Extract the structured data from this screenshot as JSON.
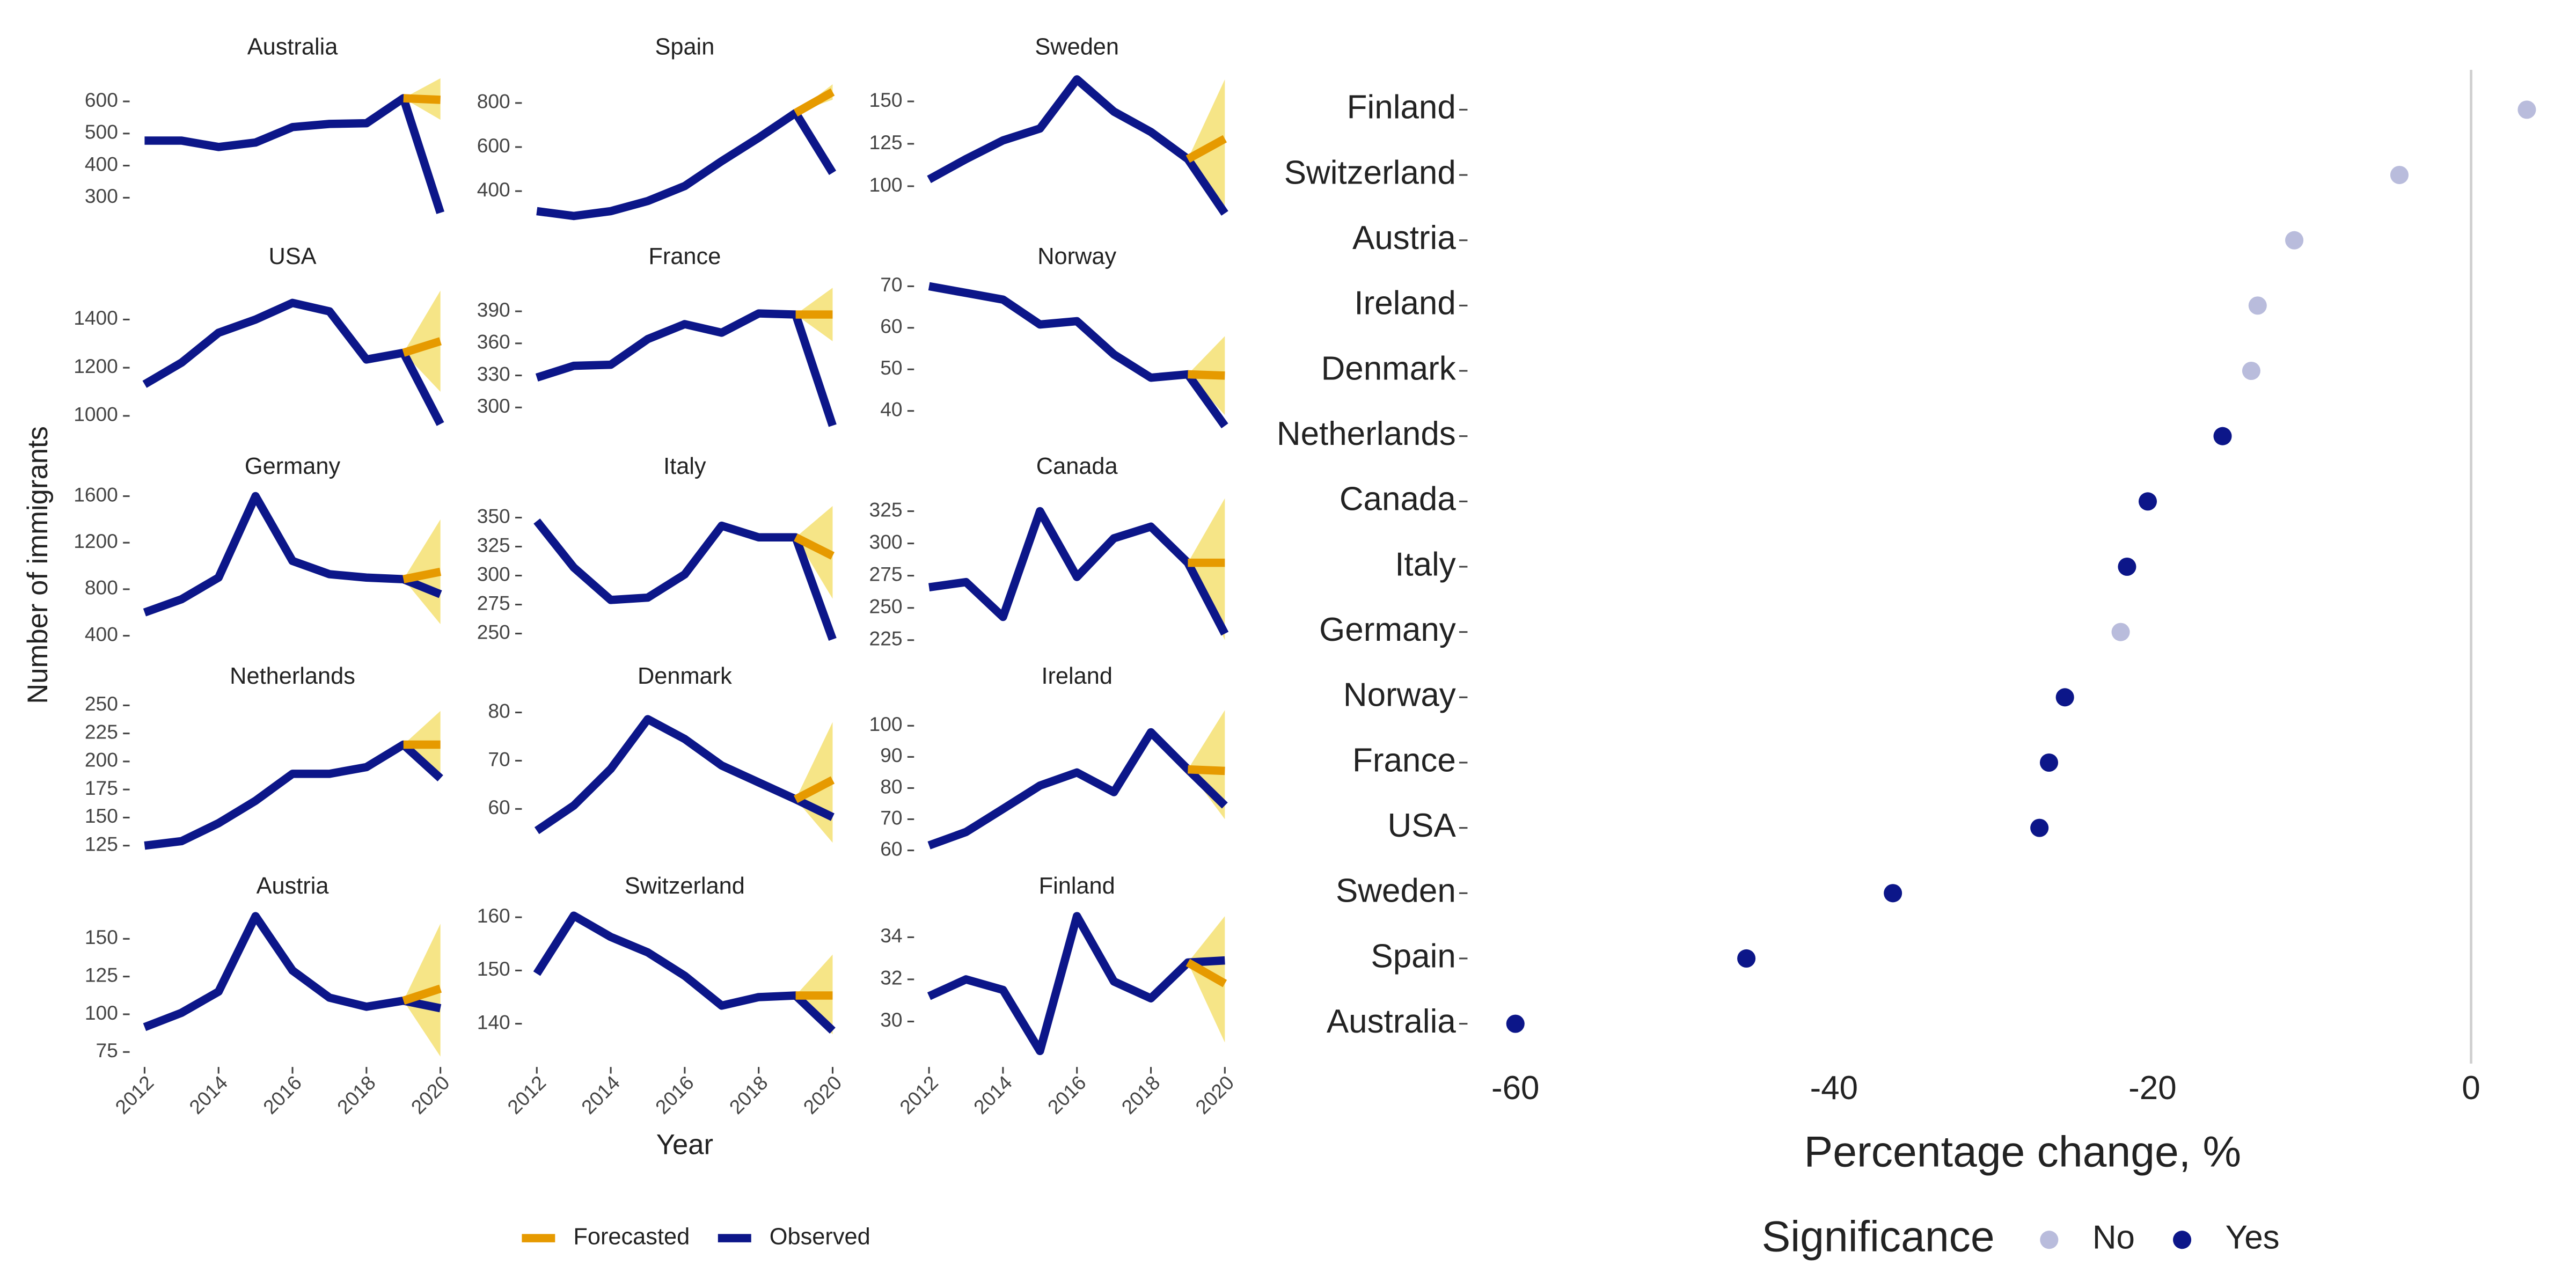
{
  "chart_data": [
    {
      "type": "facet_line",
      "xlabel": "Year",
      "ylabel": "Number of immigrants",
      "x": [
        2012,
        2013,
        2014,
        2015,
        2016,
        2017,
        2018,
        2019,
        2020
      ],
      "xlim": [
        2012,
        2020
      ],
      "xticks": [
        2012,
        2014,
        2016,
        2018,
        2020
      ],
      "legend": [
        {
          "name": "Forecasted",
          "color": "#e69a00"
        },
        {
          "name": "Observed",
          "color": "#0c1689"
        }
      ],
      "band_color": "#f5e27a",
      "panels": [
        {
          "title": "Australia",
          "ylim": [
            217,
            683
          ],
          "yticks": [
            300,
            400,
            500,
            600
          ],
          "observed": [
            478,
            478,
            458,
            472,
            520,
            530,
            532,
            610,
            253
          ],
          "forecasted": [
            null,
            null,
            null,
            null,
            null,
            null,
            null,
            610,
            605
          ],
          "lower": [
            null,
            null,
            null,
            null,
            null,
            null,
            null,
            610,
            543
          ],
          "upper": [
            null,
            null,
            null,
            null,
            null,
            null,
            null,
            610,
            672
          ]
        },
        {
          "title": "Spain",
          "ylim": [
            249,
            928
          ],
          "yticks": [
            400,
            600,
            800
          ],
          "observed": [
            309,
            287,
            309,
            355,
            423,
            536,
            642,
            755,
            483
          ],
          "forecasted": [
            null,
            null,
            null,
            null,
            null,
            null,
            null,
            755,
            850
          ],
          "lower": [
            null,
            null,
            null,
            null,
            null,
            null,
            null,
            755,
            815
          ],
          "upper": [
            null,
            null,
            null,
            null,
            null,
            null,
            null,
            755,
            885
          ]
        },
        {
          "title": "Sweden",
          "ylim": [
            77.5,
            165.7
          ],
          "yticks": [
            100,
            125,
            150
          ],
          "observed": [
            104,
            116,
            127,
            134,
            163,
            144,
            132,
            116,
            84
          ],
          "forecasted": [
            null,
            null,
            null,
            null,
            null,
            null,
            null,
            116,
            128
          ],
          "lower": [
            null,
            null,
            null,
            null,
            null,
            null,
            null,
            116,
            85
          ],
          "upper": [
            null,
            null,
            null,
            null,
            null,
            null,
            null,
            116,
            163
          ]
        },
        {
          "title": "USA",
          "ylim": [
            924,
            1545
          ],
          "yticks": [
            1000,
            1200,
            1400
          ],
          "observed": [
            1131,
            1221,
            1345,
            1400,
            1469,
            1434,
            1234,
            1262,
            966
          ],
          "forecasted": [
            null,
            null,
            null,
            null,
            null,
            null,
            null,
            1262,
            1310
          ],
          "lower": [
            null,
            null,
            null,
            null,
            null,
            null,
            null,
            1262,
            1100
          ],
          "upper": [
            null,
            null,
            null,
            null,
            null,
            null,
            null,
            1262,
            1520
          ]
        },
        {
          "title": "France",
          "ylim": [
            275,
            415
          ],
          "yticks": [
            300,
            330,
            360,
            390
          ],
          "observed": [
            328,
            339,
            340,
            364,
            378,
            370,
            388,
            387,
            283
          ],
          "forecasted": [
            null,
            null,
            null,
            null,
            null,
            null,
            null,
            387,
            387
          ],
          "lower": [
            null,
            null,
            null,
            null,
            null,
            null,
            null,
            387,
            362
          ],
          "upper": [
            null,
            null,
            null,
            null,
            null,
            null,
            null,
            387,
            412
          ]
        },
        {
          "title": "Norway",
          "ylim": [
            34.4,
            70.4
          ],
          "yticks": [
            40,
            50,
            60,
            70
          ],
          "observed": [
            70,
            68.4,
            66.8,
            60.8,
            61.6,
            53.6,
            48,
            48.8,
            36.4
          ],
          "forecasted": [
            null,
            null,
            null,
            null,
            null,
            null,
            null,
            48.8,
            48.5
          ],
          "lower": [
            null,
            null,
            null,
            null,
            null,
            null,
            null,
            48.8,
            39
          ],
          "upper": [
            null,
            null,
            null,
            null,
            null,
            null,
            null,
            48.8,
            58
          ]
        },
        {
          "title": "Germany",
          "ylim": [
            329,
            1615
          ],
          "yticks": [
            400,
            800,
            1200,
            1600
          ],
          "observed": [
            600,
            714,
            900,
            1600,
            1043,
            929,
            900,
            886,
            757
          ],
          "forecasted": [
            null,
            null,
            null,
            null,
            null,
            null,
            null,
            886,
            950
          ],
          "lower": [
            null,
            null,
            null,
            null,
            null,
            null,
            null,
            886,
            500
          ],
          "upper": [
            null,
            null,
            null,
            null,
            null,
            null,
            null,
            886,
            1400
          ]
        },
        {
          "title": "Italy",
          "ylim": [
            241,
            370
          ],
          "yticks": [
            250,
            275,
            300,
            325,
            350
          ],
          "observed": [
            347,
            307,
            279,
            281,
            301,
            343,
            333,
            333,
            245
          ],
          "forecasted": [
            null,
            null,
            null,
            null,
            null,
            null,
            null,
            333,
            317
          ],
          "lower": [
            null,
            null,
            null,
            null,
            null,
            null,
            null,
            333,
            280
          ],
          "upper": [
            null,
            null,
            null,
            null,
            null,
            null,
            null,
            333,
            360
          ]
        },
        {
          "title": "Canada",
          "ylim": [
            222,
            338
          ],
          "yticks": [
            225,
            250,
            275,
            300,
            325
          ],
          "observed": [
            266,
            270,
            243,
            325,
            274,
            304,
            313,
            285,
            230
          ],
          "forecasted": [
            null,
            null,
            null,
            null,
            null,
            null,
            null,
            285,
            285
          ],
          "lower": [
            null,
            null,
            null,
            null,
            null,
            null,
            null,
            285,
            225
          ],
          "upper": [
            null,
            null,
            null,
            null,
            null,
            null,
            null,
            285,
            335
          ]
        },
        {
          "title": "Netherlands",
          "ylim": [
            117.7,
            251
          ],
          "yticks": [
            125,
            150,
            175,
            200,
            225,
            250
          ],
          "observed": [
            125,
            129,
            145,
            165,
            189,
            189,
            195,
            215,
            185
          ],
          "forecasted": [
            null,
            null,
            null,
            null,
            null,
            null,
            null,
            215,
            215
          ],
          "lower": [
            null,
            null,
            null,
            null,
            null,
            null,
            null,
            215,
            185
          ],
          "upper": [
            null,
            null,
            null,
            null,
            null,
            null,
            null,
            215,
            245
          ]
        },
        {
          "title": "Denmark",
          "ylim": [
            50.7,
            81.7
          ],
          "yticks": [
            60,
            70,
            80
          ],
          "observed": [
            55.5,
            60.7,
            68.3,
            78.6,
            74.5,
            69,
            65.5,
            62,
            58.3
          ],
          "forecasted": [
            null,
            null,
            null,
            null,
            null,
            null,
            null,
            62,
            66
          ],
          "lower": [
            null,
            null,
            null,
            null,
            null,
            null,
            null,
            62,
            53
          ],
          "upper": [
            null,
            null,
            null,
            null,
            null,
            null,
            null,
            62,
            78
          ]
        },
        {
          "title": "Ireland",
          "ylim": [
            58.9,
            106.9
          ],
          "yticks": [
            60,
            70,
            80,
            90,
            100
          ],
          "observed": [
            61.6,
            65.9,
            73.3,
            80.8,
            85,
            78.7,
            97.9,
            86,
            74.4
          ],
          "forecasted": [
            null,
            null,
            null,
            null,
            null,
            null,
            null,
            86,
            85.5
          ],
          "lower": [
            null,
            null,
            null,
            null,
            null,
            null,
            null,
            86,
            70
          ],
          "upper": [
            null,
            null,
            null,
            null,
            null,
            null,
            null,
            86,
            105
          ]
        },
        {
          "title": "Austria",
          "ylim": [
            67.3,
            166.4
          ],
          "yticks": [
            75,
            100,
            125,
            150
          ],
          "observed": [
            91.5,
            101,
            115,
            165,
            129,
            111,
            105,
            109,
            104
          ],
          "forecasted": [
            null,
            null,
            null,
            null,
            null,
            null,
            null,
            109,
            117
          ],
          "lower": [
            null,
            null,
            null,
            null,
            null,
            null,
            null,
            109,
            72
          ],
          "upper": [
            null,
            null,
            null,
            null,
            null,
            null,
            null,
            109,
            160
          ]
        },
        {
          "title": "Switzerland",
          "ylim": [
            132.5,
            160.6
          ],
          "yticks": [
            140,
            150,
            160
          ],
          "observed": [
            149.4,
            160.3,
            156.3,
            153.4,
            149,
            143.4,
            145,
            145.3,
            138.7
          ],
          "forecasted": [
            null,
            null,
            null,
            null,
            null,
            null,
            null,
            145.3,
            145.3
          ],
          "lower": [
            null,
            null,
            null,
            null,
            null,
            null,
            null,
            145.3,
            138
          ],
          "upper": [
            null,
            null,
            null,
            null,
            null,
            null,
            null,
            145.3,
            153
          ]
        },
        {
          "title": "Finland",
          "ylim": [
            28.0,
            35.1
          ],
          "yticks": [
            30,
            32,
            34
          ],
          "observed": [
            31.2,
            32,
            31.5,
            28.6,
            35,
            31.9,
            31.1,
            32.8,
            32.9
          ],
          "forecasted": [
            null,
            null,
            null,
            null,
            null,
            null,
            null,
            32.8,
            31.8
          ],
          "lower": [
            null,
            null,
            null,
            null,
            null,
            null,
            null,
            32.8,
            29
          ],
          "upper": [
            null,
            null,
            null,
            null,
            null,
            null,
            null,
            32.8,
            35
          ]
        }
      ]
    },
    {
      "type": "dot",
      "xlabel": "Percentage change, %",
      "categories": [
        "Finland",
        "Switzerland",
        "Austria",
        "Ireland",
        "Denmark",
        "Netherlands",
        "Canada",
        "Italy",
        "Germany",
        "Norway",
        "France",
        "USA",
        "Sweden",
        "Spain",
        "Australia"
      ],
      "values": [
        3.5,
        -4.5,
        -11.1,
        -13.4,
        -13.8,
        -15.6,
        -20.3,
        -21.6,
        -22.0,
        -25.5,
        -26.5,
        -27.1,
        -36.3,
        -45.5,
        -60.0
      ],
      "significance": [
        "No",
        "No",
        "No",
        "No",
        "No",
        "Yes",
        "Yes",
        "Yes",
        "No",
        "Yes",
        "Yes",
        "Yes",
        "Yes",
        "Yes",
        "Yes"
      ],
      "xlim": [
        -62.8,
        4.5
      ],
      "xticks": [
        -60,
        -40,
        -20,
        0
      ],
      "vline": 0,
      "legend": {
        "title": "Significance",
        "entries": [
          {
            "name": "No",
            "color": "#b9bcdc"
          },
          {
            "name": "Yes",
            "color": "#0c1689"
          }
        ]
      }
    }
  ]
}
